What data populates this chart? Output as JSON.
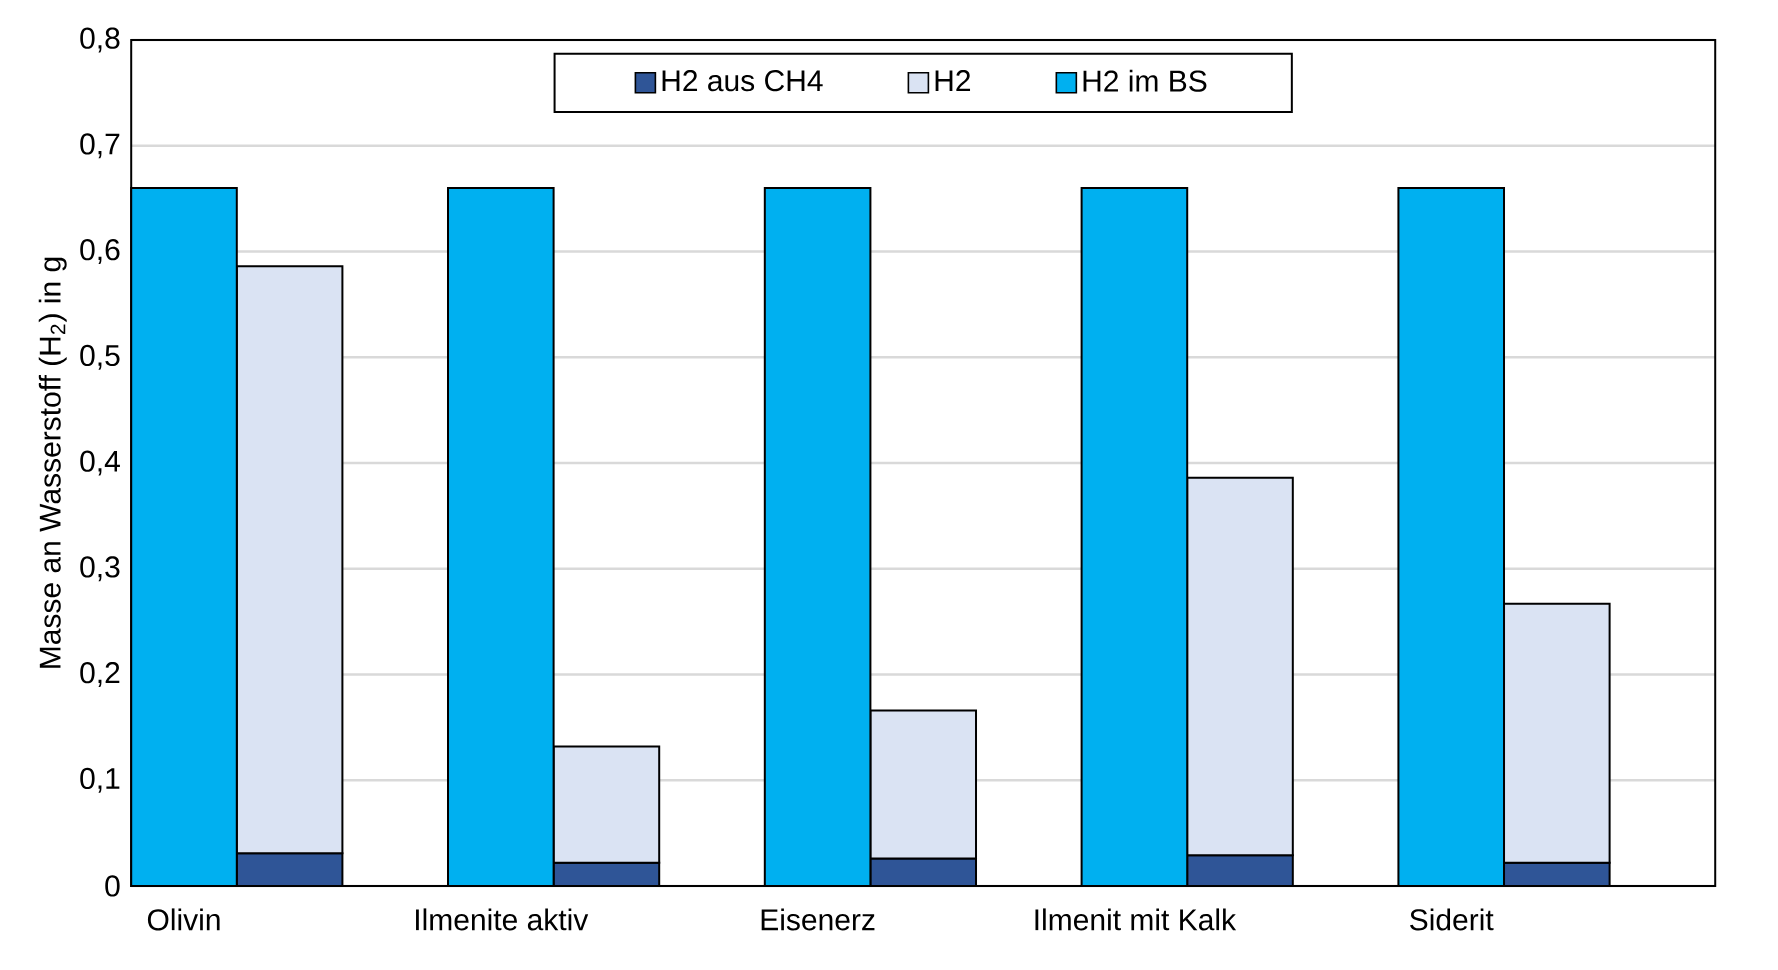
{
  "chart_data": {
    "type": "bar",
    "stacked": true,
    "ylabel": "Masse an Wasserstoff (H$_{2}$) in g",
    "categories": [
      "Olivin",
      null,
      null,
      "Ilmenite aktiv",
      null,
      null,
      "Eisenerz",
      null,
      null,
      "Ilmenit mit Kalk",
      null,
      null,
      "Siderit",
      null,
      null
    ],
    "series": [
      {
        "name": "H2 aus CH4",
        "color": "#2f5597",
        "values": [
          null,
          0.031,
          null,
          null,
          0.022,
          null,
          null,
          0.026,
          null,
          null,
          0.029,
          null,
          null,
          0.022,
          null
        ]
      },
      {
        "name": "H2",
        "color": "#dae3f3",
        "values": [
          null,
          0.555,
          null,
          null,
          0.11,
          null,
          null,
          0.14,
          null,
          null,
          0.357,
          null,
          null,
          0.245,
          null
        ]
      },
      {
        "name": "H2 im BS",
        "color": "#00b0f0",
        "values": [
          0.66,
          null,
          null,
          0.66,
          null,
          null,
          0.66,
          null,
          null,
          0.66,
          null,
          null,
          0.66,
          null,
          null
        ]
      }
    ],
    "ylim": [
      0,
      0.8
    ],
    "yticks": [
      0,
      {
        "value": 0.1,
        "label": "0,1"
      },
      {
        "value": 0.2,
        "label": "0,2"
      },
      {
        "value": 0.3,
        "label": "0,3"
      },
      {
        "value": 0.4,
        "label": "0,4"
      },
      {
        "value": 0.5,
        "label": "0,5"
      },
      {
        "value": 0.6,
        "label": "0,6"
      },
      {
        "value": 0.7,
        "label": "0,7"
      },
      {
        "value": 0.8,
        "label": "0,8"
      }
    ],
    "grid": "y",
    "legend": "top"
  }
}
